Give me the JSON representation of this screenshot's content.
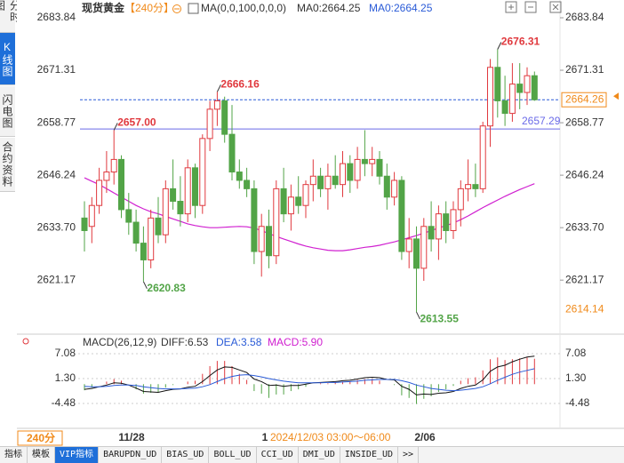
{
  "sidebar": [
    "分时图",
    "K线图",
    "闪电图",
    "合约资料"
  ],
  "chart_data": {
    "type": "candlestick",
    "title": "现货黄金",
    "period": "【240分】",
    "indicator": "MA(0,0,100,0,0,0)",
    "indicator_values": [
      "MA0:2664.25",
      "MA0:2664.25"
    ],
    "up_color": "#e0393e",
    "down_color": "#52a447",
    "ohlc": [
      [
        2636,
        2640,
        2628,
        2633
      ],
      [
        2634,
        2641,
        2630,
        2639
      ],
      [
        2639,
        2648,
        2637,
        2645
      ],
      [
        2645,
        2652,
        2642,
        2647
      ],
      [
        2647,
        2657,
        2644,
        2650
      ],
      [
        2650,
        2651,
        2636,
        2638
      ],
      [
        2638,
        2642,
        2632,
        2635
      ],
      [
        2635,
        2638,
        2628,
        2630
      ],
      [
        2630,
        2634,
        2620.83,
        2626
      ],
      [
        2626,
        2638,
        2624,
        2636
      ],
      [
        2636,
        2641,
        2630,
        2632
      ],
      [
        2632,
        2645,
        2630,
        2643
      ],
      [
        2643,
        2650,
        2638,
        2640
      ],
      [
        2640,
        2646,
        2634,
        2637
      ],
      [
        2637,
        2650,
        2635,
        2648
      ],
      [
        2648,
        2649,
        2636,
        2639
      ],
      [
        2639,
        2656,
        2637,
        2655
      ],
      [
        2655,
        2664,
        2652,
        2662
      ],
      [
        2662,
        2666.16,
        2658,
        2664
      ],
      [
        2664,
        2665,
        2654,
        2656
      ],
      [
        2656,
        2663,
        2645,
        2647
      ],
      [
        2647,
        2650,
        2643,
        2645
      ],
      [
        2645,
        2648,
        2641,
        2643
      ],
      [
        2643,
        2645,
        2625,
        2628
      ],
      [
        2628,
        2637,
        2622,
        2634
      ],
      [
        2634,
        2638,
        2624,
        2627
      ],
      [
        2627,
        2645,
        2625,
        2643
      ],
      [
        2643,
        2648,
        2635,
        2637
      ],
      [
        2637,
        2644,
        2633,
        2641
      ],
      [
        2641,
        2646,
        2637,
        2639
      ],
      [
        2639,
        2645,
        2636,
        2644
      ],
      [
        2644,
        2650,
        2640,
        2646
      ],
      [
        2646,
        2648,
        2641,
        2643
      ],
      [
        2643,
        2649,
        2638,
        2646
      ],
      [
        2646,
        2651,
        2643,
        2644
      ],
      [
        2644,
        2652,
        2641,
        2649
      ],
      [
        2649,
        2651,
        2642,
        2645
      ],
      [
        2645,
        2653,
        2643,
        2650
      ],
      [
        2650,
        2657.0,
        2646,
        2649
      ],
      [
        2649,
        2653,
        2646,
        2650
      ],
      [
        2650,
        2652,
        2644,
        2646
      ],
      [
        2646,
        2649,
        2638,
        2641
      ],
      [
        2641,
        2647,
        2639,
        2645
      ],
      [
        2645,
        2646,
        2626,
        2628
      ],
      [
        2628,
        2636,
        2624,
        2631
      ],
      [
        2631,
        2634,
        2613.55,
        2624
      ],
      [
        2624,
        2636,
        2621,
        2634
      ],
      [
        2634,
        2640,
        2628,
        2631
      ],
      [
        2631,
        2639,
        2626,
        2637
      ],
      [
        2637,
        2640,
        2630,
        2633
      ],
      [
        2633,
        2640,
        2631,
        2638
      ],
      [
        2638,
        2645,
        2634,
        2643
      ],
      [
        2643,
        2650,
        2640,
        2644
      ],
      [
        2644,
        2649,
        2641,
        2643
      ],
      [
        2643,
        2659,
        2642,
        2658
      ],
      [
        2658,
        2674,
        2653,
        2672
      ],
      [
        2672,
        2676.31,
        2660,
        2664
      ],
      [
        2664,
        2670,
        2658,
        2661
      ],
      [
        2661,
        2673,
        2659,
        2668
      ],
      [
        2668,
        2673,
        2662,
        2666
      ],
      [
        2666,
        2672,
        2663,
        2670
      ],
      [
        2670,
        2671,
        2664,
        2664.26
      ]
    ],
    "ma": {
      "color": "#d020d0",
      "values": [
        2645.6,
        2644.8,
        2644,
        2643,
        2642,
        2641,
        2640,
        2639,
        2638.2,
        2637.5,
        2637,
        2636.4,
        2635.8,
        2635.2,
        2634.6,
        2634.2,
        2633.9,
        2633.7,
        2633.7,
        2633.8,
        2633.9,
        2634,
        2633.9,
        2633.6,
        2633.0,
        2632.3,
        2631.6,
        2631,
        2630.4,
        2629.8,
        2629.3,
        2628.9,
        2628.6,
        2628.3,
        2628.2,
        2628.2,
        2628.4,
        2628.7,
        2629,
        2629.2,
        2629.5,
        2629.9,
        2630.3,
        2630.8,
        2631.3,
        2631.8,
        2632.4,
        2633,
        2633.6,
        2634.2,
        2634.8,
        2635.6,
        2636.5,
        2637.5,
        2638.5,
        2639.4,
        2640.3,
        2641.2,
        2642,
        2642.8,
        2643.5,
        2644.2
      ]
    },
    "ylim": [
      2609.11,
      2686.39
    ],
    "yticks": [
      2683.84,
      2671.31,
      2658.77,
      2646.24,
      {
        "value": 2633.7,
        "label": "2633.70"
      },
      2621.17
    ],
    "last_price": 2664.26,
    "reference_line": {
      "value": 2657.29,
      "color": "#6a6ae8"
    },
    "axis_low": 2614.14,
    "extremes": [
      {
        "value": 2666.16
      },
      {
        "value": 2657.0,
        "label": "2657.00"
      },
      {
        "value": 2676.31
      },
      {
        "value": 2620.83
      },
      {
        "value": 2613.55
      }
    ],
    "x_labels": [
      "11/28",
      "1",
      "2/06"
    ],
    "crosshair_time": "2024/12/03 03:00～06:00",
    "period_button": "240分",
    "macd": {
      "title": "MACD(26,12,9)",
      "legend": [
        "DIFF:6.53",
        "DEA:3.58",
        "MACD:5.90"
      ],
      "dif": [
        -1.2,
        -1.0,
        -0.6,
        -0.2,
        0.3,
        0.2,
        -0.2,
        -0.9,
        -1.7,
        -1.8,
        -1.9,
        -1.5,
        -1.2,
        -1.1,
        -0.7,
        -0.5,
        0.6,
        2.0,
        3.3,
        4.0,
        3.9,
        3.3,
        2.7,
        1.2,
        0.6,
        -0.3,
        -0.2,
        -0.5,
        -0.3,
        -0.3,
        0.0,
        0.3,
        0.4,
        0.5,
        0.6,
        0.8,
        0.9,
        1.2,
        1.5,
        1.6,
        1.5,
        1.1,
        1.0,
        -0.5,
        -1.2,
        -2.5,
        -2.3,
        -2.4,
        -2.1,
        -2.0,
        -1.7,
        -1.0,
        -0.5,
        -0.2,
        1.0,
        3.0,
        4.0,
        4.4,
        5.2,
        5.8,
        6.3,
        6.53
      ],
      "dea": [
        -0.5,
        -0.6,
        -0.6,
        -0.5,
        -0.3,
        -0.2,
        -0.2,
        -0.3,
        -0.6,
        -0.8,
        -1.0,
        -1.1,
        -1.1,
        -1.1,
        -1.0,
        -0.9,
        -0.6,
        -0.1,
        0.6,
        1.3,
        1.8,
        2.1,
        2.2,
        2.0,
        1.7,
        1.3,
        1.0,
        0.7,
        0.5,
        0.3,
        0.3,
        0.3,
        0.3,
        0.4,
        0.4,
        0.5,
        0.6,
        0.7,
        0.9,
        1.0,
        1.1,
        1.1,
        1.1,
        0.8,
        0.4,
        -0.2,
        -0.6,
        -1.0,
        -1.2,
        -1.4,
        -1.5,
        -1.4,
        -1.2,
        -1.0,
        -0.6,
        0.1,
        0.9,
        1.6,
        2.3,
        2.8,
        3.2,
        3.58
      ],
      "hist": [
        -1.4,
        -0.8,
        0,
        0.6,
        1.2,
        0.8,
        0,
        -1.2,
        -2.2,
        -2.0,
        -1.8,
        -0.8,
        -0.2,
        0,
        0.6,
        0.8,
        2.4,
        4.2,
        5.4,
        5.4,
        4.2,
        2.4,
        1.0,
        -1.6,
        -2.2,
        -3.2,
        -2.4,
        -2.4,
        -1.6,
        -1.2,
        -0.6,
        0,
        0.2,
        0.2,
        0.4,
        0.6,
        0.6,
        1.0,
        1.2,
        1.2,
        0.8,
        0,
        -0.2,
        -2.6,
        -3.2,
        -4.6,
        -3.4,
        -2.8,
        -1.8,
        -1.2,
        -0.4,
        0.8,
        1.4,
        1.6,
        3.2,
        5.8,
        6.2,
        5.6,
        5.8,
        6.0,
        6.2,
        5.9
      ],
      "dif_color": "#111111",
      "dea_color": "#2a5bd7",
      "hist_color": "#d020d0",
      "ylim": [
        -9.43,
        9.76
      ],
      "yticks": [
        7.08,
        {
          "value": 1.3,
          "label": "1.30"
        },
        -4.48
      ]
    }
  },
  "toolbar": [
    "指标",
    "模板",
    "VIP指标",
    "BARUPDN_UD",
    "BIAS_UD",
    "BOLL_UD",
    "CCI_UD",
    "DMI_UD",
    "INSIDE_UD",
    ">>"
  ]
}
